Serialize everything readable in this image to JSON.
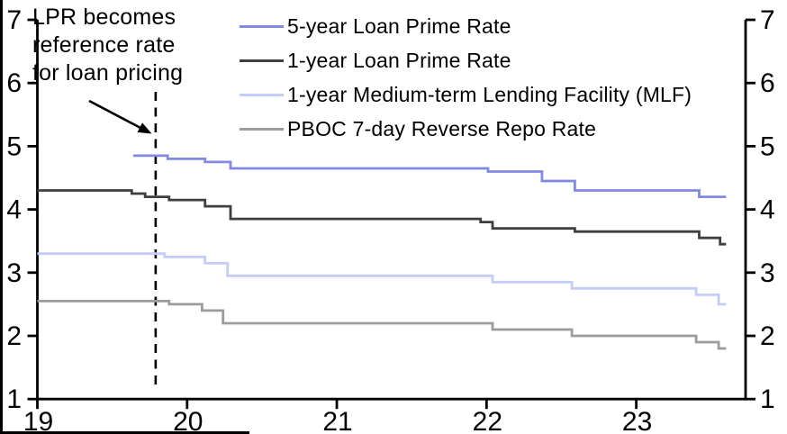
{
  "chart_data": {
    "type": "line",
    "line_style": "step-after",
    "title": "",
    "xlabel": "",
    "ylabel": "",
    "x_range": [
      19,
      23.73
    ],
    "y_range": [
      1,
      7
    ],
    "x_ticks": [
      19,
      20,
      21,
      22,
      23
    ],
    "y_ticks": [
      1,
      2,
      3,
      4,
      5,
      6,
      7
    ],
    "y_axis_sides": [
      "left",
      "right"
    ],
    "grid": false,
    "legend_position": "top-center",
    "series": [
      {
        "name": "5-year Loan Prime Rate",
        "color": "#8289e2",
        "points": [
          [
            19.64,
            4.85
          ],
          [
            19.87,
            4.8
          ],
          [
            20.12,
            4.75
          ],
          [
            20.29,
            4.65
          ],
          [
            22.01,
            4.6
          ],
          [
            22.37,
            4.45
          ],
          [
            22.59,
            4.3
          ],
          [
            23.42,
            4.2
          ]
        ],
        "end_x": 23.6
      },
      {
        "name": "1-year Loan Prime Rate",
        "color": "#3f3f3f",
        "points": [
          [
            19.0,
            4.3
          ],
          [
            19.63,
            4.25
          ],
          [
            19.72,
            4.2
          ],
          [
            19.88,
            4.15
          ],
          [
            20.12,
            4.05
          ],
          [
            20.29,
            3.85
          ],
          [
            21.96,
            3.8
          ],
          [
            22.04,
            3.7
          ],
          [
            22.59,
            3.65
          ],
          [
            23.42,
            3.55
          ],
          [
            23.56,
            3.45
          ]
        ],
        "end_x": 23.6
      },
      {
        "name": "1-year Medium-term Lending Facility (MLF)",
        "color": "#c5ccf5",
        "points": [
          [
            19.0,
            3.3
          ],
          [
            19.85,
            3.25
          ],
          [
            20.12,
            3.15
          ],
          [
            20.27,
            2.95
          ],
          [
            22.04,
            2.85
          ],
          [
            22.57,
            2.75
          ],
          [
            23.4,
            2.65
          ],
          [
            23.55,
            2.5
          ]
        ],
        "end_x": 23.6
      },
      {
        "name": "PBOC 7-day Reverse Repo Rate",
        "color": "#9c9c9c",
        "points": [
          [
            19.0,
            2.55
          ],
          [
            19.88,
            2.5
          ],
          [
            20.1,
            2.4
          ],
          [
            20.24,
            2.2
          ],
          [
            22.04,
            2.1
          ],
          [
            22.57,
            2.0
          ],
          [
            23.4,
            1.9
          ],
          [
            23.55,
            1.8
          ]
        ],
        "end_x": 23.6
      }
    ],
    "reference_line": {
      "x": 19.79,
      "style": "dashed",
      "color": "#000000"
    }
  },
  "annotation": {
    "lines": [
      "LPR becomes",
      "reference rate",
      "for loan pricing"
    ],
    "arrow_icon": "arrow-down-right-icon"
  },
  "colors": {
    "axis": "#000000",
    "background": "#ffffff",
    "border": "#000000",
    "text": "#000000"
  }
}
